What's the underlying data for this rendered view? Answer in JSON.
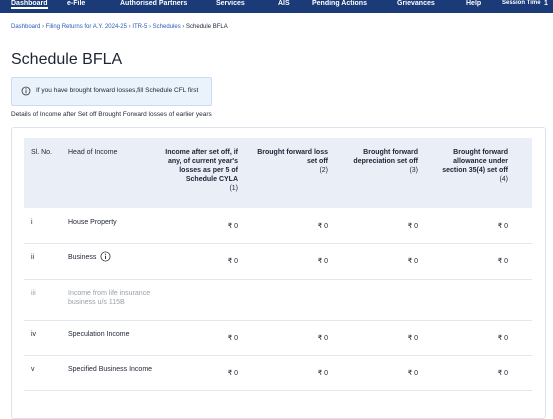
{
  "nav": {
    "items": [
      "Dashboard",
      "e-File",
      "Authorised Partners",
      "Services",
      "AIS",
      "Pending Actions",
      "Grievances",
      "Help"
    ],
    "session_label": "Session Time",
    "session_value": "1"
  },
  "breadcrumb": [
    "Dashboard",
    "Filing Returns for A.Y. 2024-25",
    "ITR-5",
    "Schedules",
    "Schedule BFLA"
  ],
  "title": "Schedule BFLA",
  "info": "If you have brought forward losses,fill Schedule CFL first",
  "description": "Details of Income after Set off Brought Forward losses of earlier years",
  "table": {
    "headers": [
      "Sl. No.",
      "Head of Income",
      "Income after set off, if any, of current year's losses as per 5 of Schedule CYLA",
      "Brought forward loss set off",
      "Brought forward depreciation set off",
      "Brought forward allowance under section 35(4) set off"
    ],
    "column_numbers": [
      "(1)",
      "(2)",
      "(3)",
      "(4)"
    ],
    "rows": [
      {
        "sl": "i",
        "head": "House Property",
        "values": [
          "₹ 0",
          "₹ 0",
          "₹ 0",
          "₹ 0"
        ]
      },
      {
        "sl": "ii",
        "head": "Business",
        "values": [
          "₹ 0",
          "₹ 0",
          "₹ 0",
          "₹ 0"
        ]
      },
      {
        "sl": "iii",
        "head": "Income from life insurance business u/s 115B",
        "disabled": true
      },
      {
        "sl": "iv",
        "head": "Speculation Income",
        "values": [
          "₹ 0",
          "₹ 0",
          "₹ 0",
          "₹ 0"
        ]
      },
      {
        "sl": "v",
        "head": "Specified Business Income",
        "values": [
          "₹ 0",
          "₹ 0",
          "₹ 0",
          "₹ 0"
        ]
      }
    ]
  }
}
